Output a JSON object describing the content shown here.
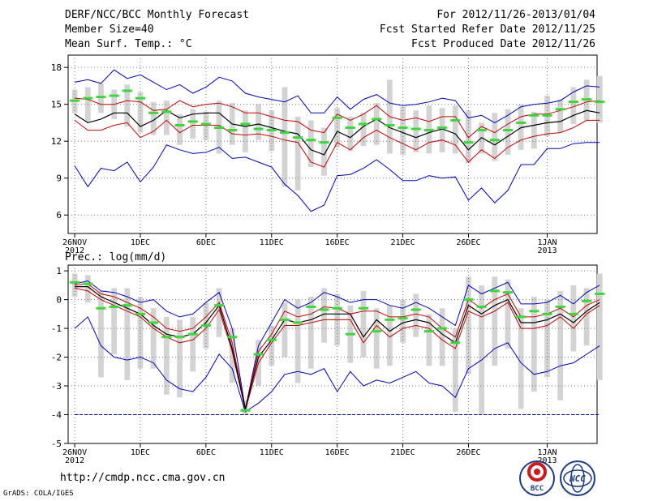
{
  "header": {
    "title": "DERF/NCC/BCC Monthly Forecast",
    "member_size": "Member Size=40",
    "variable": "Mean Surf. Temp.: °C",
    "forecast_period": "For 2012/11/26-2013/01/04",
    "start_date": "Fcst Started Refer Date 2012/11/25",
    "produced_date": "Fcst Produced Date 2012/11/26"
  },
  "footer": {
    "url": "http://cmdp.ncc.cma.gov.cn",
    "credit": "GrADS: COLA/IGES",
    "logo_bcc_text": "BCC",
    "logo_ncc_text": "NCC"
  },
  "colors": {
    "box": "#d3d3d3",
    "mean": "#000000",
    "median": "#33dd33",
    "envelope": "#0000cc",
    "spread": "#cc0000",
    "grid": "#777777",
    "floor": "#0000cc"
  },
  "chart_data": [
    {
      "type": "line",
      "title": "Mean Surf. Temp.: °C",
      "x_tick_labels": [
        "26NOV",
        "1DEC",
        "6DEC",
        "11DEC",
        "16DEC",
        "21DEC",
        "26DEC",
        "1JAN"
      ],
      "x_year_labels": {
        "26NOV": "2012",
        "1JAN": "2013"
      },
      "x_tick_index": [
        0,
        5,
        10,
        15,
        20,
        25,
        30,
        36
      ],
      "yticks": [
        6,
        9,
        12,
        15,
        18
      ],
      "ylim": [
        4.5,
        19
      ],
      "xlim": [
        -0.5,
        39.8
      ],
      "series": [
        {
          "name": "max",
          "values": [
            16.8,
            17.0,
            16.7,
            17.8,
            17.1,
            17.4,
            16.8,
            16.2,
            16.6,
            15.9,
            16.4,
            17.2,
            16.9,
            15.9,
            15.6,
            15.4,
            15.2,
            15.7,
            14.3,
            14.3,
            15.6,
            14.6,
            15.4,
            15.8,
            15.1,
            14.9,
            15.0,
            15.2,
            15.5,
            15.3,
            13.9,
            14.1,
            13.5,
            14.1,
            14.8,
            15.0,
            15.1,
            15.3,
            16.0,
            16.5,
            16.4
          ]
        },
        {
          "name": "upper",
          "values": [
            15.5,
            15.4,
            15.0,
            15.0,
            15.3,
            15.2,
            14.5,
            14.6,
            15.3,
            14.8,
            15.0,
            15.1,
            14.8,
            14.3,
            14.3,
            14.0,
            13.7,
            13.6,
            12.9,
            12.7,
            14.2,
            13.7,
            14.2,
            14.9,
            14.0,
            13.7,
            13.9,
            13.6,
            14.0,
            14.0,
            12.3,
            13.2,
            12.7,
            13.4,
            14.0,
            14.2,
            14.2,
            14.5,
            14.8,
            15.2,
            15.3
          ]
        },
        {
          "name": "mean",
          "values": [
            14.2,
            13.5,
            13.8,
            14.3,
            14.3,
            13.2,
            13.7,
            14.5,
            13.9,
            14.2,
            14.3,
            14.3,
            13.4,
            13.2,
            13.4,
            13.1,
            12.8,
            12.6,
            11.3,
            10.9,
            12.8,
            12.3,
            13.2,
            13.8,
            13.1,
            12.7,
            12.3,
            12.7,
            13.0,
            12.6,
            11.3,
            12.3,
            11.7,
            12.4,
            13.1,
            13.3,
            13.5,
            13.6,
            14.1,
            14.5,
            14.3
          ]
        },
        {
          "name": "lower",
          "values": [
            13.7,
            12.9,
            12.9,
            13.3,
            13.5,
            12.3,
            12.8,
            13.7,
            12.7,
            13.3,
            13.3,
            13.3,
            12.6,
            12.5,
            12.6,
            12.4,
            12.1,
            11.9,
            10.3,
            9.9,
            11.9,
            11.3,
            12.3,
            12.9,
            12.3,
            11.8,
            11.3,
            11.9,
            12.1,
            11.7,
            10.3,
            11.3,
            10.6,
            11.5,
            12.1,
            12.4,
            12.6,
            12.7,
            13.1,
            13.7,
            13.7
          ]
        },
        {
          "name": "min",
          "values": [
            10.0,
            8.3,
            9.8,
            9.6,
            10.3,
            8.7,
            9.9,
            11.7,
            11.3,
            11.0,
            11.1,
            11.5,
            10.6,
            10.7,
            10.3,
            9.9,
            8.5,
            7.6,
            6.3,
            6.8,
            9.2,
            9.3,
            9.8,
            10.5,
            9.7,
            8.8,
            8.8,
            9.2,
            9.0,
            9.1,
            7.2,
            8.2,
            7.0,
            8.0,
            10.1,
            10.1,
            11.4,
            11.4,
            11.8,
            11.9,
            11.9
          ]
        },
        {
          "name": "median",
          "values": [
            15.3,
            15.5,
            15.6,
            15.7,
            16.1,
            15.5,
            14.3,
            14.4,
            13.3,
            13.6,
            13.4,
            13.1,
            12.9,
            13.4,
            13.0,
            12.9,
            12.7,
            12.3,
            12.1,
            11.9,
            13.9,
            13.1,
            13.4,
            13.8,
            13.3,
            13.1,
            13.0,
            12.9,
            13.1,
            13.7,
            11.9,
            12.9,
            12.1,
            12.9,
            13.5,
            14.1,
            14.1,
            14.6,
            15.2,
            15.4,
            15.2
          ]
        },
        {
          "name": "box_top",
          "values": [
            16.2,
            16.4,
            16.7,
            16.2,
            16.6,
            16.0,
            15.2,
            15.3,
            14.2,
            14.6,
            14.4,
            15.3,
            15.1,
            14.5,
            15.0,
            14.5,
            16.4,
            14.0,
            13.7,
            13.1,
            14.7,
            14.0,
            14.3,
            15.1,
            17.0,
            14.8,
            14.5,
            14.9,
            14.7,
            14.9,
            14.5,
            13.5,
            14.3,
            14.6,
            15.0,
            14.4,
            15.7,
            15.4,
            16.4,
            17.0,
            17.3
          ]
        },
        {
          "name": "box_bottom",
          "values": [
            14.3,
            13.6,
            14.3,
            13.8,
            13.2,
            12.7,
            12.5,
            12.5,
            11.7,
            12.2,
            12.1,
            11.0,
            11.7,
            11.1,
            12.1,
            11.2,
            8.3,
            8.0,
            9.9,
            9.2,
            11.5,
            11.2,
            11.6,
            11.7,
            11.0,
            10.9,
            11.1,
            11.0,
            11.1,
            11.0,
            10.2,
            11.0,
            10.4,
            10.9,
            11.3,
            11.4,
            12.4,
            12.7,
            13.4,
            13.7,
            13.5
          ]
        }
      ]
    },
    {
      "type": "line",
      "title": "Prec.: log(mm/d)",
      "x_tick_labels": [
        "26NOV",
        "1DEC",
        "6DEC",
        "11DEC",
        "16DEC",
        "21DEC",
        "26DEC",
        "1JAN"
      ],
      "x_year_labels": {
        "26NOV": "2012",
        "1JAN": "2013"
      },
      "x_tick_index": [
        0,
        5,
        10,
        15,
        20,
        25,
        30,
        36
      ],
      "yticks": [
        -5,
        -4,
        -3,
        -2,
        -1,
        0,
        1
      ],
      "ylim": [
        -5,
        1.2
      ],
      "xlim": [
        -0.5,
        39.8
      ],
      "floor_value": -4,
      "series": [
        {
          "name": "max",
          "values": [
            0.55,
            0.65,
            0.3,
            0.25,
            0.1,
            -0.1,
            0.0,
            -0.4,
            -0.6,
            -0.5,
            -0.1,
            0.25,
            -1.0,
            -3.8,
            -1.6,
            -0.8,
            0.0,
            -0.3,
            -0.1,
            0.25,
            0.1,
            -0.1,
            0.0,
            0.0,
            -0.2,
            -0.3,
            -0.1,
            -0.3,
            -0.6,
            -0.9,
            0.5,
            0.2,
            0.4,
            0.6,
            -0.15,
            -0.15,
            -0.1,
            0.15,
            -0.15,
            0.25,
            0.5
          ]
        },
        {
          "name": "upper",
          "values": [
            0.5,
            0.55,
            0.2,
            0.1,
            -0.1,
            -0.3,
            -0.6,
            -1.0,
            -1.1,
            -1.0,
            -0.6,
            -0.1,
            -1.5,
            -3.8,
            -1.8,
            -1.2,
            -0.4,
            -0.6,
            -0.5,
            -0.25,
            -0.3,
            -0.5,
            -0.4,
            -0.4,
            -0.6,
            -0.6,
            -0.5,
            -0.6,
            -1.0,
            -1.3,
            0.0,
            -0.3,
            0.0,
            0.2,
            -0.6,
            -0.6,
            -0.5,
            -0.3,
            -0.6,
            -0.2,
            0.0
          ]
        },
        {
          "name": "mean",
          "values": [
            0.45,
            0.45,
            0.1,
            -0.1,
            -0.3,
            -0.5,
            -0.9,
            -1.2,
            -1.3,
            -1.2,
            -0.8,
            -0.2,
            -1.7,
            -3.8,
            -2.0,
            -1.4,
            -0.7,
            -0.8,
            -0.7,
            -0.5,
            -0.5,
            -0.5,
            -1.3,
            -0.7,
            -1.1,
            -0.8,
            -0.7,
            -0.8,
            -1.2,
            -1.5,
            -0.2,
            -0.5,
            -0.2,
            0.0,
            -0.8,
            -0.8,
            -0.7,
            -0.5,
            -0.8,
            -0.4,
            -0.1
          ]
        },
        {
          "name": "lower",
          "values": [
            0.4,
            0.3,
            0.0,
            -0.2,
            -0.4,
            -0.6,
            -1.0,
            -1.3,
            -1.5,
            -1.4,
            -1.0,
            -0.35,
            -1.8,
            -3.85,
            -2.2,
            -1.5,
            -0.9,
            -0.9,
            -0.8,
            -0.7,
            -0.7,
            -0.7,
            -1.5,
            -0.9,
            -1.3,
            -1.0,
            -0.9,
            -1.0,
            -1.4,
            -1.7,
            -0.4,
            -0.6,
            -0.4,
            -0.1,
            -1.0,
            -1.0,
            -0.9,
            -0.6,
            -1.0,
            -0.5,
            -0.2
          ]
        },
        {
          "name": "min",
          "values": [
            -1.0,
            -0.6,
            -1.6,
            -2.0,
            -2.1,
            -2.0,
            -2.2,
            -2.8,
            -3.1,
            -3.2,
            -2.7,
            -1.9,
            -2.4,
            -3.9,
            -3.6,
            -3.2,
            -2.6,
            -2.5,
            -2.6,
            -2.4,
            -3.2,
            -2.5,
            -3.0,
            -2.8,
            -2.9,
            -2.7,
            -2.5,
            -2.9,
            -3.0,
            -3.4,
            -2.4,
            -2.1,
            -1.7,
            -1.5,
            -2.2,
            -2.6,
            -2.5,
            -2.3,
            -2.2,
            -1.9,
            -1.6
          ]
        },
        {
          "name": "median",
          "values": [
            0.6,
            0.55,
            -0.3,
            -0.25,
            -0.2,
            -0.5,
            -0.8,
            -1.3,
            -1.3,
            -1.2,
            -0.9,
            -0.2,
            -1.3,
            -3.85,
            -1.9,
            -1.4,
            -0.7,
            -0.8,
            -0.25,
            -0.35,
            -0.3,
            -1.2,
            -0.3,
            -1.1,
            -0.7,
            -0.65,
            -0.35,
            -1.1,
            -1.0,
            -1.5,
            0.0,
            -0.25,
            0.3,
            0.25,
            -0.6,
            -0.4,
            -0.5,
            -0.25,
            -0.5,
            -0.05,
            0.2
          ]
        },
        {
          "name": "box_top",
          "values": [
            0.9,
            0.85,
            0.3,
            0.4,
            0.4,
            0.1,
            -0.3,
            -0.6,
            -0.7,
            -0.6,
            -0.1,
            0.4,
            -1.0,
            -3.5,
            -1.4,
            -0.9,
            -0.1,
            0.0,
            0.1,
            0.4,
            0.2,
            -0.2,
            0.3,
            -0.3,
            -0.2,
            0.0,
            0.2,
            -0.5,
            -0.3,
            -1.0,
            0.8,
            0.5,
            0.8,
            0.7,
            -0.3,
            0.1,
            0.0,
            0.3,
            0.5,
            0.4,
            0.9
          ]
        },
        {
          "name": "box_bottom",
          "values": [
            0.1,
            -0.1,
            -2.7,
            -1.9,
            -2.8,
            -2.4,
            -2.4,
            -3.3,
            -3.4,
            -2.5,
            -1.7,
            -1.3,
            -2.9,
            -4.0,
            -3.0,
            -2.3,
            -2.0,
            -2.9,
            -2.4,
            -1.5,
            -1.6,
            -2.2,
            -2.0,
            -2.4,
            -2.3,
            -1.5,
            -1.3,
            -2.3,
            -2.3,
            -3.9,
            -2.6,
            -4.0,
            -2.3,
            -1.7,
            -3.8,
            -3.2,
            -2.7,
            -3.5,
            -1.8,
            -1.6,
            -2.8
          ]
        }
      ]
    }
  ]
}
